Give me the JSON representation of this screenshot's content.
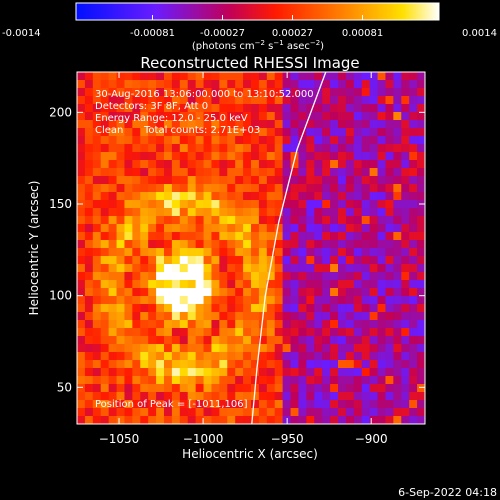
{
  "colorbar": {
    "tick_labels": [
      "-0.0014",
      "-0.00081",
      "-0.00027",
      "0.00027",
      "0.00081",
      "0.0014"
    ],
    "tick_values": [
      -0.0014,
      -0.00081,
      -0.00027,
      0.00027,
      0.00081,
      0.0014
    ],
    "range": [
      -0.0014,
      0.0014
    ]
  },
  "chart_data": {
    "type": "heatmap",
    "title": "Reconstructed RHESSI Image",
    "xlabel": "Heliocentric X (arcsec)",
    "ylabel": "Heliocentric Y (arcsec)",
    "xlim": [
      -1075,
      -868
    ],
    "ylim": [
      30,
      222
    ],
    "x_ticks": [
      {
        "value": -1050,
        "label": "−1050"
      },
      {
        "value": -1000,
        "label": "−1000"
      },
      {
        "value": -950,
        "label": "−950"
      },
      {
        "value": -900,
        "label": "−900"
      }
    ],
    "y_ticks": [
      {
        "value": 50,
        "label": "50"
      },
      {
        "value": 100,
        "label": "100"
      },
      {
        "value": 150,
        "label": "150"
      },
      {
        "value": 200,
        "label": "200"
      }
    ],
    "colormap": "rainbow-like (blue-purple-red-orange-yellow-white)",
    "peak_position": [
      -1011,
      106
    ],
    "limb": [
      [
        -927,
        222
      ],
      [
        -944,
        180
      ],
      [
        -955,
        140
      ],
      [
        -963,
        100
      ],
      [
        -968,
        60
      ],
      [
        -971,
        30
      ]
    ],
    "annotations": {
      "time_range": "30-Aug-2016 13:06:00.000 to 13:10:52.000",
      "detectors": "Detectors: 3F 8F, Att 0",
      "energy_range": "Energy Range: 12.0 - 25.0 keV",
      "method": "Clean",
      "total_counts": "Total counts: 2.71E+03",
      "peak": "Position of Peak = [-1011,106]"
    }
  },
  "footer": {
    "timestamp": "6-Sep-2022 04:18"
  }
}
